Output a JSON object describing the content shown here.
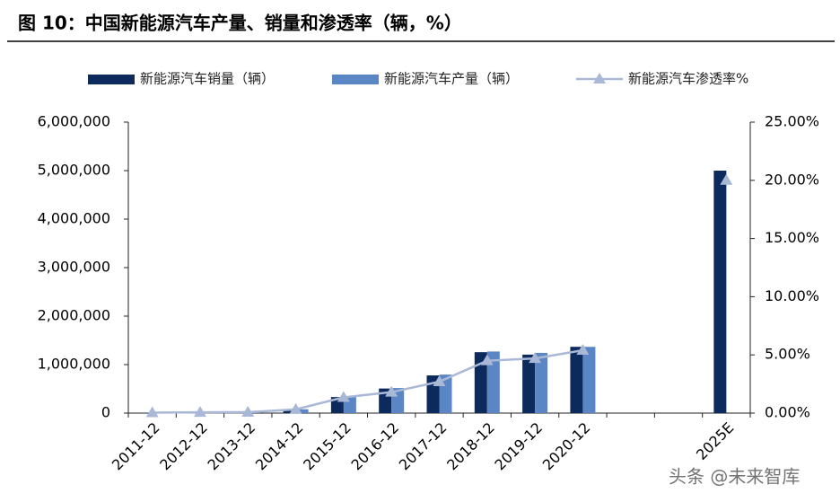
{
  "chart_data": {
    "type": "bar",
    "title": "图 10：中国新能源汽车产量、销量和渗透率（辆，%）",
    "categories": [
      "2011-12",
      "2012-12",
      "2013-12",
      "2014-12",
      "2015-12",
      "2016-12",
      "2017-12",
      "2018-12",
      "2019-12",
      "2020-12",
      null,
      null,
      "2025E"
    ],
    "series": [
      {
        "name": "新能源汽车销量（辆）",
        "type": "bar",
        "color": "#0d2a5c",
        "values": [
          8000,
          13000,
          18000,
          75000,
          331000,
          507000,
          777000,
          1256000,
          1206000,
          1367000,
          null,
          null,
          5000000
        ]
      },
      {
        "name": "新能源汽车产量（辆）",
        "type": "bar",
        "color": "#5b86c5",
        "values": [
          8400,
          12600,
          17500,
          78500,
          340000,
          517000,
          794000,
          1270000,
          1242000,
          1366000,
          null,
          null,
          null
        ]
      },
      {
        "name": "新能源汽车渗透率%",
        "type": "line",
        "axis": "y2",
        "color": "#a9b8d6",
        "values": [
          0.04,
          0.07,
          0.08,
          0.32,
          1.35,
          1.8,
          2.7,
          4.5,
          4.7,
          5.4,
          null,
          null,
          20
        ]
      }
    ],
    "ylim": [
      0,
      6000000
    ],
    "yticks": [
      0,
      {
        "value": 1000000,
        "label": "1,000,000"
      },
      {
        "value": 2000000,
        "label": "2,000,000"
      },
      {
        "value": 3000000,
        "label": "3,000,000"
      },
      {
        "value": 4000000,
        "label": "4,000,000"
      },
      {
        "value": 5000000,
        "label": "5,000,000"
      },
      {
        "value": 6000000,
        "label": "6,000,000"
      }
    ],
    "y2lim": [
      0,
      25
    ],
    "y2ticks": [
      {
        "value": 0,
        "label": "0.00%"
      },
      {
        "value": 5,
        "label": "5.00%"
      },
      {
        "value": 10,
        "label": "10.00%"
      },
      {
        "value": 15,
        "label": "15.00%"
      },
      {
        "value": 20,
        "label": "20.00%"
      },
      {
        "value": 25,
        "label": "25.00%"
      }
    ],
    "legend": "top",
    "watermark": "头条 @未来智库"
  }
}
